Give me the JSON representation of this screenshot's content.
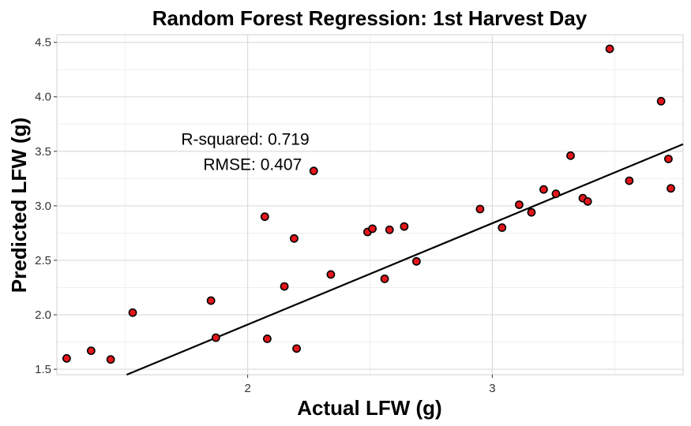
{
  "chart_data": {
    "type": "scatter",
    "title": "Random Forest Regression: 1st Harvest Day",
    "xlabel": "Actual LFW (g)",
    "ylabel": "Predicted LFW (g)",
    "xlim": [
      1.22,
      3.78
    ],
    "ylim": [
      1.45,
      4.57
    ],
    "x_ticks": [
      2,
      3
    ],
    "x_tick_labels": [
      "2",
      "3"
    ],
    "y_ticks": [
      1.5,
      2.0,
      2.5,
      3.0,
      3.5,
      4.0,
      4.5
    ],
    "y_tick_labels": [
      "1.5",
      "2.0",
      "2.5",
      "3.0",
      "3.5",
      "4.0",
      "4.5"
    ],
    "grid": true,
    "legend": "none",
    "point_color": "#e3161b",
    "point_edge_color": "#000000",
    "annotations": [
      {
        "text": "R-squared:  0.719",
        "x": 1.99,
        "y": 3.6
      },
      {
        "text": "RMSE:  0.407",
        "x": 2.02,
        "y": 3.37
      }
    ],
    "fit_line": {
      "slope": 0.93,
      "intercept": 0.05
    },
    "series": [
      {
        "x": [
          1.26,
          1.36,
          1.44,
          1.53,
          1.85,
          1.87,
          2.07,
          2.08,
          2.15,
          2.19,
          2.2,
          2.27,
          2.34,
          2.49,
          2.51,
          2.56,
          2.58,
          2.64,
          2.69,
          2.95,
          3.04,
          3.11,
          3.16,
          3.21,
          3.26,
          3.32,
          3.37,
          3.39,
          3.48,
          3.56,
          3.69,
          3.72,
          3.73
        ],
        "y": [
          1.6,
          1.67,
          1.59,
          2.02,
          2.13,
          1.79,
          2.9,
          1.78,
          2.26,
          2.7,
          1.69,
          3.32,
          2.37,
          2.76,
          2.79,
          2.33,
          2.78,
          2.81,
          2.49,
          2.97,
          2.8,
          3.01,
          2.94,
          3.15,
          3.11,
          3.46,
          3.07,
          3.04,
          4.44,
          3.23,
          3.96,
          3.43,
          3.16
        ]
      }
    ]
  }
}
